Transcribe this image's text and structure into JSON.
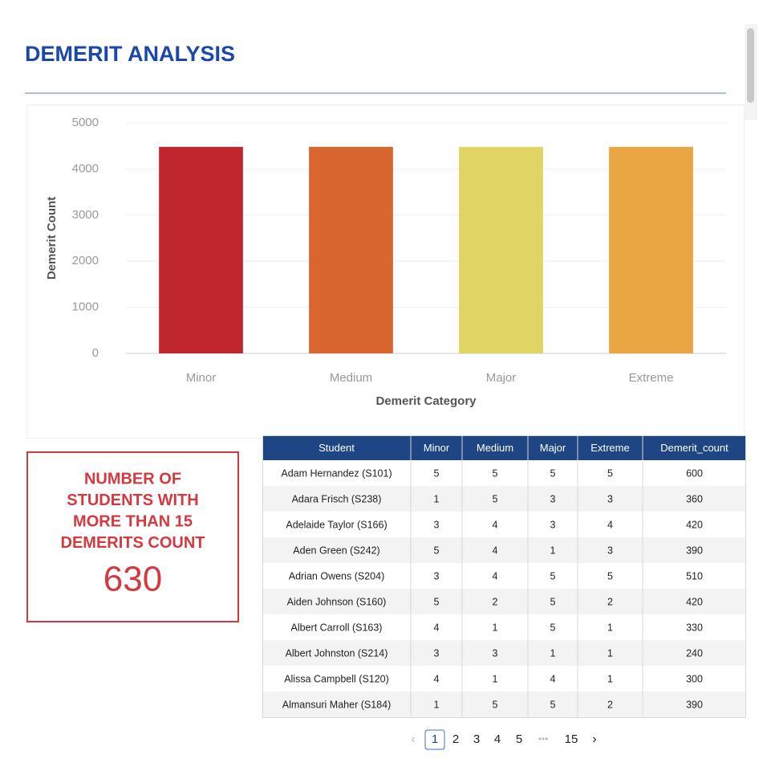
{
  "header": {
    "title": "DEMERIT ANALYSIS"
  },
  "chart_data": {
    "type": "bar",
    "x_label": "Demerit Category",
    "y_label": "Demerit Count",
    "categories": [
      "Minor",
      "Medium",
      "Major",
      "Extreme"
    ],
    "values": [
      4480,
      4480,
      4480,
      4480
    ],
    "colors": [
      "#c0272d",
      "#d9662f",
      "#e0d463",
      "#e9a642"
    ],
    "ylim": [
      0,
      5000
    ],
    "yticks": [
      0,
      1000,
      2000,
      3000,
      4000,
      5000
    ],
    "grid": true
  },
  "kpi": {
    "lines": [
      "NUMBER OF",
      "STUDENTS WITH",
      "MORE THAN 15",
      "DEMERITS COUNT"
    ],
    "value": 630
  },
  "table": {
    "columns": [
      "Student",
      "Minor",
      "Medium",
      "Major",
      "Extreme",
      "Demerit_count"
    ],
    "rows": [
      [
        "Adam Hernandez (S101)",
        5,
        5,
        5,
        5,
        600
      ],
      [
        "Adara Frisch (S238)",
        1,
        5,
        3,
        3,
        360
      ],
      [
        "Adelaide Taylor (S166)",
        3,
        4,
        3,
        4,
        420
      ],
      [
        "Aden Green (S242)",
        5,
        4,
        1,
        3,
        390
      ],
      [
        "Adrian Owens (S204)",
        3,
        4,
        5,
        5,
        510
      ],
      [
        "Aiden Johnson (S160)",
        5,
        2,
        5,
        2,
        420
      ],
      [
        "Albert Carroll (S163)",
        4,
        1,
        5,
        1,
        330
      ],
      [
        "Albert Johnston (S214)",
        3,
        3,
        1,
        1,
        240
      ],
      [
        "Alissa Campbell (S120)",
        4,
        1,
        4,
        1,
        300
      ],
      [
        "Almansuri Maher (S184)",
        1,
        5,
        5,
        2,
        390
      ]
    ]
  },
  "pagination": {
    "pages": [
      1,
      2,
      3,
      4,
      5,
      15
    ],
    "current": 0
  }
}
